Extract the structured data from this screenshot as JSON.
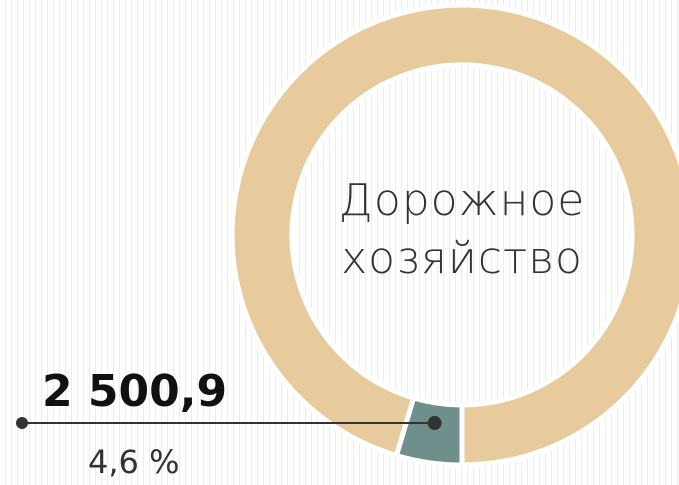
{
  "chart_data": {
    "type": "pie",
    "donut": true,
    "title": "Дорожное хозяйство",
    "values": [
      4.6,
      95.4
    ],
    "value_labels": [
      "4,6 %",
      null
    ],
    "colors": [
      "#6e8f8b",
      "#e8cb9c"
    ],
    "amount": {
      "value": 2500.9,
      "label": "2 500,9"
    }
  }
}
